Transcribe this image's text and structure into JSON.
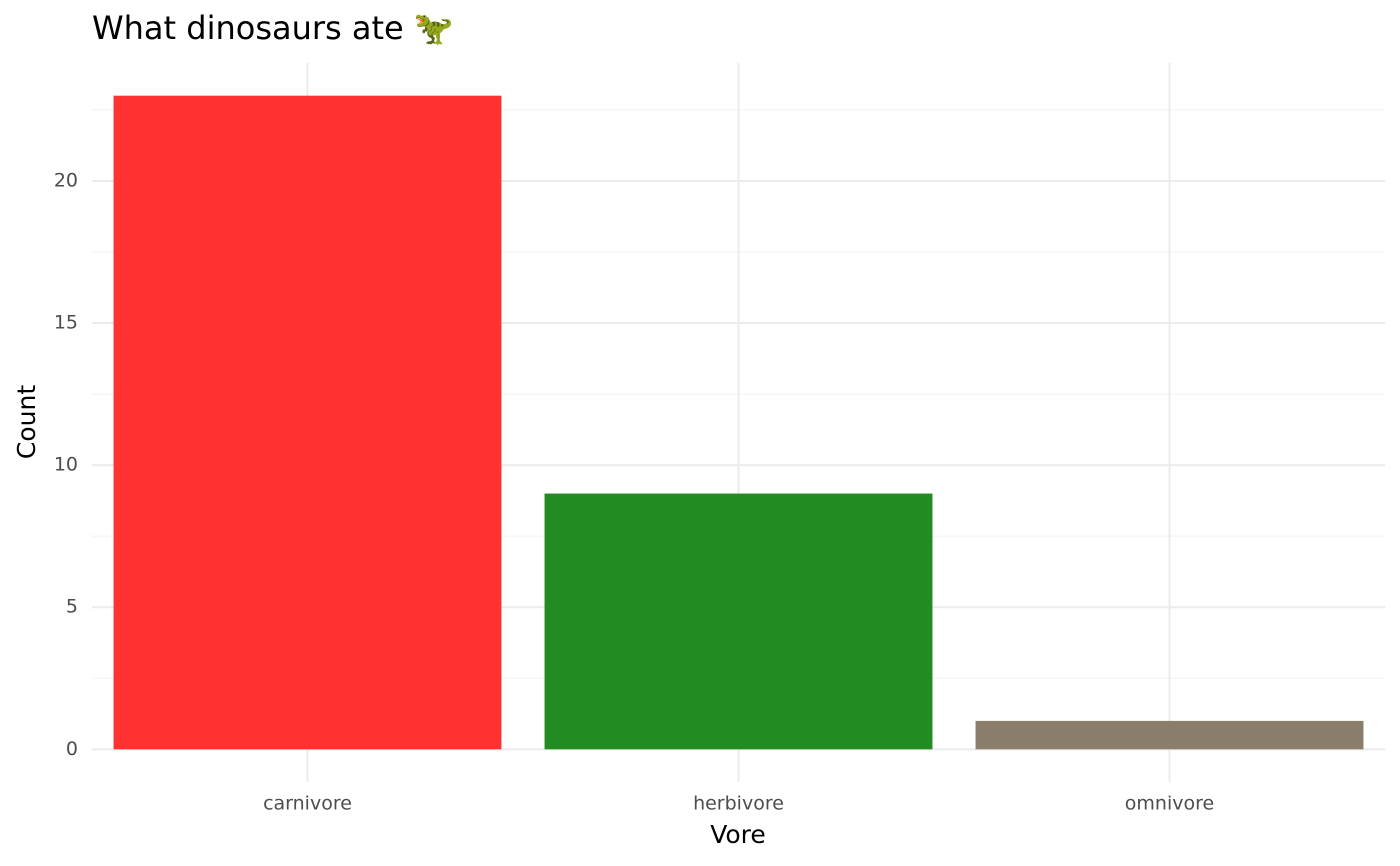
{
  "chart_data": {
    "type": "bar",
    "title": "What dinosaurs ate 🦖",
    "x_label": "Vore",
    "y_label": "Count",
    "categories": [
      "carnivore",
      "herbivore",
      "omnivore"
    ],
    "values": [
      23,
      9,
      1
    ],
    "colors": [
      "#ff3131",
      "#228b22",
      "#8b7d6b"
    ],
    "ylim": [
      -1.15,
      24.15
    ],
    "yticks": [
      0,
      5,
      10,
      15,
      20
    ],
    "grid": true
  }
}
